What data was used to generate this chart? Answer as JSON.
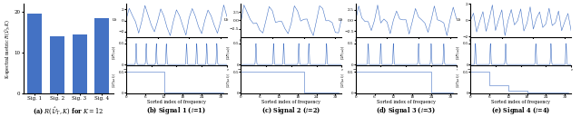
{
  "bar_values": [
    19.5,
    14.0,
    14.5,
    18.5
  ],
  "bar_color": "#4472c4",
  "bar_labels": [
    "Sig. 1",
    "Sig. 2",
    "Sig. 3",
    "Sig. 4"
  ],
  "bar_title": "(a) $R(\\hat{\\mathcal{U}}_T, K)$ for $K = 12$",
  "signal_titles": [
    "(b) Signal 1 ($i$=1)",
    "(c) Signal 2 ($i$=2)",
    "(d) Signal 3 ($i$=3)",
    "(e) Signal 4 ($i$=4)"
  ],
  "line_color": "#4472c4",
  "background_color": "#ffffff"
}
